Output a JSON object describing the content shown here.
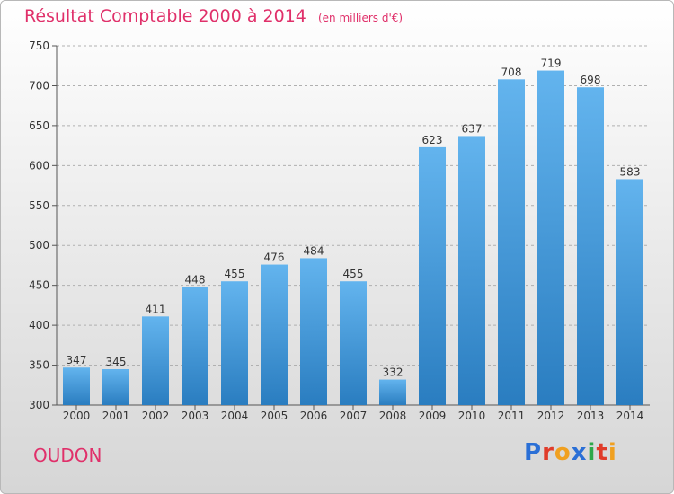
{
  "title": "Résultat Comptable 2000 à 2014",
  "unit_note": "(en milliers d'€)",
  "commune": "OUDON",
  "logo": {
    "text": "Proxiti",
    "letters": [
      "P",
      "r",
      "o",
      "x",
      "i",
      "t",
      "i"
    ],
    "colors": [
      "#2a6fd6",
      "#e03c2a",
      "#f0a020",
      "#2a6fd6",
      "#2ea84a",
      "#e03c2a",
      "#f0a020"
    ]
  },
  "colors": {
    "title": "#e0306a",
    "bar_top": "#63b4ee",
    "bar_bottom": "#2a7dc0",
    "grid": "#b0b0b0"
  },
  "chart_data": {
    "type": "bar",
    "title": "Résultat Comptable 2000 à 2014",
    "xlabel": "",
    "ylabel": "",
    "categories": [
      "2000",
      "2001",
      "2002",
      "2003",
      "2004",
      "2005",
      "2006",
      "2007",
      "2008",
      "2009",
      "2010",
      "2011",
      "2012",
      "2013",
      "2014"
    ],
    "values": [
      347,
      345,
      411,
      448,
      455,
      476,
      484,
      455,
      332,
      623,
      637,
      708,
      719,
      698,
      583
    ],
    "ylim": [
      300,
      750
    ],
    "yticks": [
      300,
      350,
      400,
      450,
      500,
      550,
      600,
      650,
      700,
      750
    ],
    "grid": true,
    "data_labels": true
  }
}
